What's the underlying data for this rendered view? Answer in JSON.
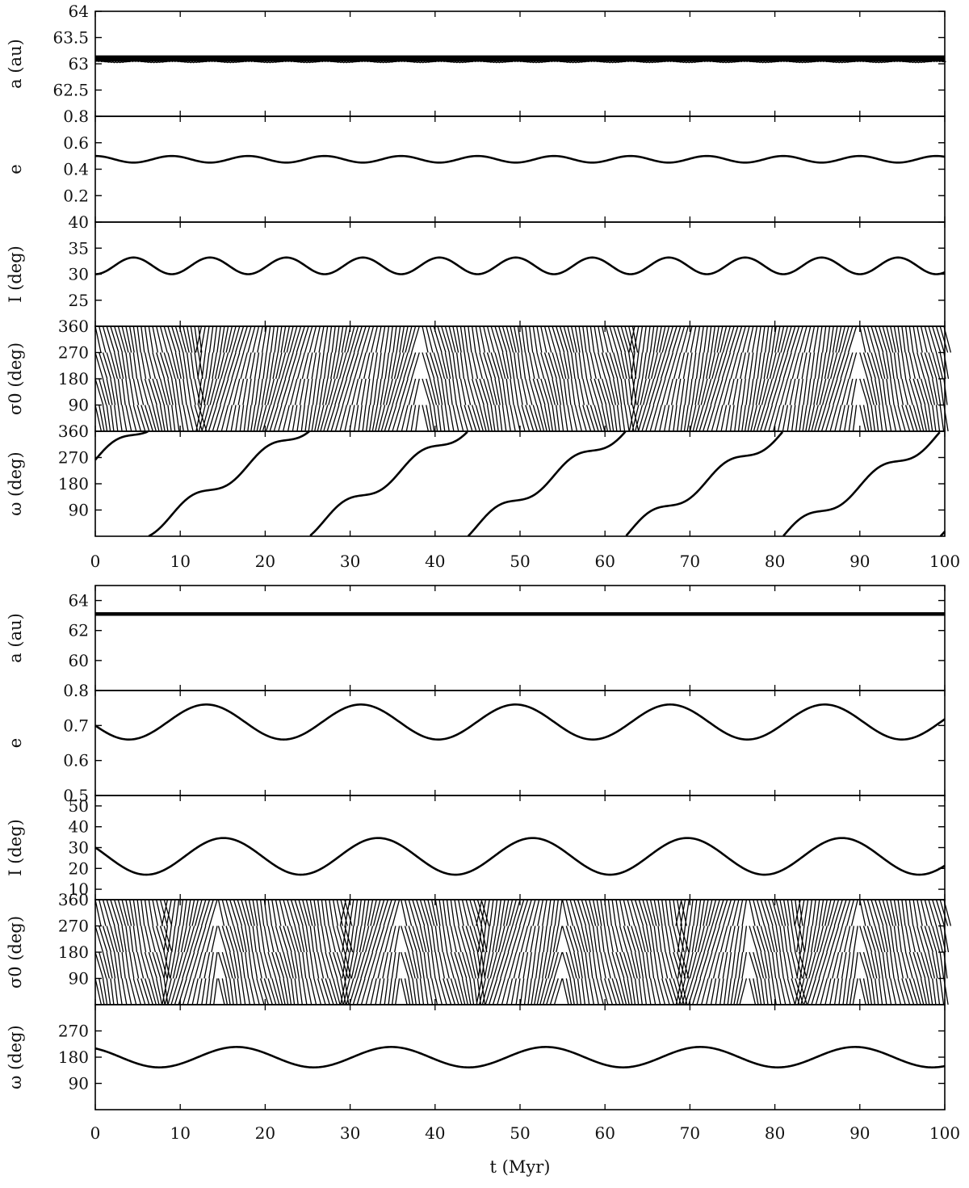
{
  "chart_data": [
    {
      "type": "line",
      "figure_part": "top",
      "x": {
        "label": "",
        "ticks": [
          0,
          10,
          20,
          30,
          40,
          50,
          60,
          70,
          80,
          90,
          100
        ],
        "tick_labels": [
          "0",
          "10",
          "20",
          "30",
          "40",
          "50",
          "60",
          "70",
          "80",
          "90",
          "100"
        ],
        "range": [
          0,
          100
        ]
      },
      "panels": [
        {
          "key": "a",
          "ylabel": "a (au)",
          "ylim": [
            62,
            64
          ],
          "yticks": [
            62.5,
            63,
            63.5,
            64
          ],
          "ytick_labels": [
            "62.5",
            "63",
            "63.5",
            "64"
          ],
          "series": [
            {
              "style": "dense-band",
              "center": 63.1,
              "half_width": 0.06,
              "lower_dips": -0.08,
              "description_points": {
                "x": [
                  0,
                  25,
                  50,
                  75,
                  100
                ],
                "y": [
                  63.1,
                  63.1,
                  63.1,
                  63.1,
                  63.1
                ]
              }
            }
          ]
        },
        {
          "key": "e",
          "ylabel": "e",
          "ylim": [
            0,
            0.8
          ],
          "yticks": [
            0.2,
            0.4,
            0.6,
            0.8
          ],
          "ytick_labels": [
            "0.2",
            "0.4",
            "0.6",
            "0.8"
          ],
          "series": [
            {
              "style": "line",
              "shape": "cosine",
              "mean": 0.475,
              "amplitude": 0.025,
              "period": 9.0,
              "phase": 0
            }
          ]
        },
        {
          "key": "I",
          "ylabel": "I (deg)",
          "ylim": [
            20,
            40
          ],
          "yticks": [
            25,
            30,
            35,
            40
          ],
          "ytick_labels": [
            "25",
            "30",
            "35",
            "40"
          ],
          "series": [
            {
              "style": "line",
              "shape": "cosine-from-min",
              "mean": 31.6,
              "amplitude": 1.6,
              "period": 9.0,
              "phase": 0
            }
          ]
        },
        {
          "key": "sigma",
          "ylabel": "σ0 (deg)",
          "ylim": [
            0,
            360
          ],
          "yticks": [
            90,
            180,
            270,
            360
          ],
          "ytick_labels": [
            "90",
            "180",
            "270",
            "360"
          ],
          "series": [
            {
              "style": "circulating-dots",
              "description": "σ0 circulates through 0–360 deg continuously",
              "boundaries_x": [
                12.5,
                38.5,
                63.5,
                90
              ]
            }
          ]
        },
        {
          "key": "omega",
          "ylabel": "ω (deg)",
          "ylim": [
            0,
            360
          ],
          "yticks": [
            90,
            180,
            270,
            360
          ],
          "ytick_labels": [
            "90",
            "180",
            "270",
            "360"
          ],
          "series": [
            {
              "style": "line",
              "shape": "wrapped-ramp",
              "start": 262,
              "slope_deg_per_Myr": 19.0,
              "wiggle": 22,
              "wiggle_period": 9.0
            }
          ]
        }
      ]
    },
    {
      "type": "line",
      "figure_part": "bottom",
      "x": {
        "label": "t (Myr)",
        "ticks": [
          0,
          10,
          20,
          30,
          40,
          50,
          60,
          70,
          80,
          90,
          100
        ],
        "tick_labels": [
          "0",
          "10",
          "20",
          "30",
          "40",
          "50",
          "60",
          "70",
          "80",
          "90",
          "100"
        ],
        "range": [
          0,
          100
        ]
      },
      "panels": [
        {
          "key": "a",
          "ylabel": "a (au)",
          "ylim": [
            58,
            65
          ],
          "yticks": [
            60,
            62,
            64
          ],
          "ytick_labels": [
            "60",
            "62",
            "64"
          ],
          "series": [
            {
              "style": "dense-band",
              "center": 63.1,
              "half_width": 0.12,
              "lower_dips": 0,
              "description_points": {
                "x": [
                  0,
                  25,
                  50,
                  75,
                  100
                ],
                "y": [
                  63.1,
                  63.1,
                  63.1,
                  63.1,
                  63.1
                ]
              }
            }
          ]
        },
        {
          "key": "e",
          "ylabel": "e",
          "ylim": [
            0.5,
            0.8
          ],
          "yticks": [
            0.5,
            0.6,
            0.7,
            0.8
          ],
          "ytick_labels": [
            "0.5",
            "0.6",
            "0.7",
            "0.8"
          ],
          "series": [
            {
              "style": "line",
              "shape": "cosine",
              "mean": 0.71,
              "amplitude": 0.05,
              "period": 18.2,
              "phase_start": 0.7
            }
          ]
        },
        {
          "key": "I",
          "ylabel": "I (deg)",
          "ylim": [
            5,
            55
          ],
          "yticks": [
            10,
            20,
            30,
            40,
            50
          ],
          "ytick_labels": [
            "10",
            "20",
            "30",
            "40",
            "50"
          ],
          "series": [
            {
              "style": "line",
              "shape": "cosine",
              "mean": 25.8,
              "amplitude": 8.8,
              "period": 18.2,
              "phase_start": 30.0
            }
          ]
        },
        {
          "key": "sigma",
          "ylabel": "σ0 (deg)",
          "ylim": [
            0,
            360
          ],
          "yticks": [
            90,
            180,
            270,
            360
          ],
          "ytick_labels": [
            "90",
            "180",
            "270",
            "360"
          ],
          "series": [
            {
              "style": "circulating-dots",
              "description": "σ0 circulates with alternating chaotic-looking bands",
              "boundaries_x": [
                8.5,
                14.5,
                29.5,
                36,
                45.5,
                55,
                69,
                77,
                83,
                90
              ]
            }
          ]
        },
        {
          "key": "omega",
          "ylabel": "ω (deg)",
          "ylim": [
            0,
            360
          ],
          "yticks": [
            90,
            180,
            270
          ],
          "ytick_labels": [
            "90",
            "180",
            "270"
          ],
          "series": [
            {
              "style": "line",
              "shape": "libration",
              "mean": 180,
              "amplitude": 35,
              "period": 18.2,
              "start": 210
            }
          ]
        }
      ]
    }
  ]
}
